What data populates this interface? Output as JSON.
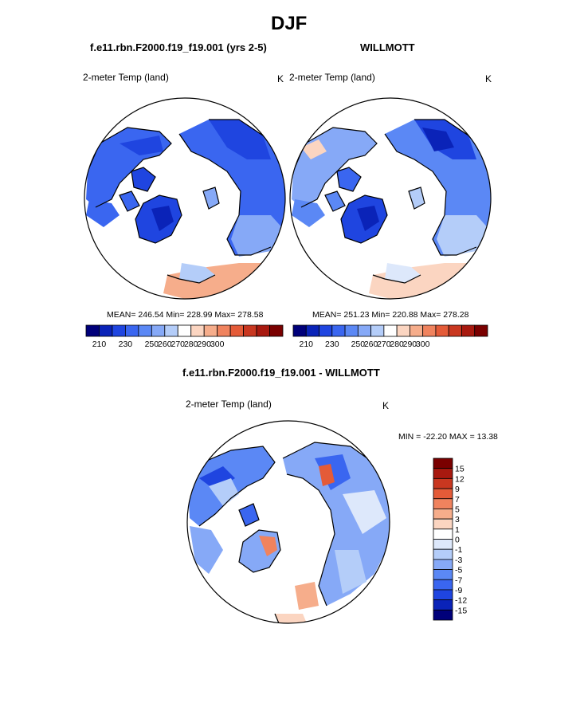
{
  "figure": {
    "title": "DJF",
    "left_title": "f.e11.rbn.F2000.f19_f19.001 (yrs 2-5)",
    "right_title": "WILLMOTT",
    "diff_title": "f.e11.rbn.F2000.f19_f19.001 - WILLMOTT"
  },
  "chart_data": [
    {
      "type": "heatmap",
      "projection": "north-polar-stereographic",
      "title": "f.e11.rbn.F2000.f19_f19.001 (yrs 2-5)",
      "variable": "2-meter Temp (land)",
      "units": "K",
      "stats": "MEAN= 246.54  Min= 228.99  Max= 278.58",
      "mean": 246.54,
      "min": 228.99,
      "max": 278.58,
      "colorbar": {
        "ticks": [
          "210",
          "230",
          "250",
          "260",
          "270",
          "280",
          "290",
          "300"
        ],
        "colors": [
          "#00007a",
          "#0a23b8",
          "#1f45e0",
          "#3a66f0",
          "#5b88f5",
          "#86a9f7",
          "#b4cdf9",
          "#ffffff",
          "#fbd5c1",
          "#f6ad8b",
          "#f0835e",
          "#e45b38",
          "#c93720",
          "#a8190f",
          "#7a0000"
        ]
      }
    },
    {
      "type": "heatmap",
      "projection": "north-polar-stereographic",
      "title": "WILLMOTT",
      "variable": "2-meter Temp (land)",
      "units": "K",
      "stats": "MEAN= 251.23  Min= 220.88  Max= 278.28",
      "mean": 251.23,
      "min": 220.88,
      "max": 278.28,
      "colorbar": {
        "ticks": [
          "210",
          "230",
          "250",
          "260",
          "270",
          "280",
          "290",
          "300"
        ],
        "colors": [
          "#00007a",
          "#0a23b8",
          "#1f45e0",
          "#3a66f0",
          "#5b88f5",
          "#86a9f7",
          "#b4cdf9",
          "#ffffff",
          "#fbd5c1",
          "#f6ad8b",
          "#f0835e",
          "#e45b38",
          "#c93720",
          "#a8190f",
          "#7a0000"
        ]
      }
    },
    {
      "type": "heatmap",
      "projection": "north-polar-stereographic",
      "title": "f.e11.rbn.F2000.f19_f19.001 - WILLMOTT",
      "variable": "2-meter Temp (land)",
      "units": "K",
      "stats": "MIN = -22.20 MAX =  13.38",
      "min": -22.2,
      "max": 13.38,
      "colorbar": {
        "ticks": [
          "15",
          "12",
          "9",
          "7",
          "5",
          "3",
          "1",
          "0",
          "-1",
          "-3",
          "-5",
          "-7",
          "-9",
          "-12",
          "-15"
        ],
        "colors": [
          "#7a0000",
          "#a8190f",
          "#c93720",
          "#e45b38",
          "#f0835e",
          "#f6ad8b",
          "#fbd5c1",
          "#ffffff",
          "#dde8fb",
          "#b4cdf9",
          "#86a9f7",
          "#5b88f5",
          "#3a66f0",
          "#1f45e0",
          "#0a23b8",
          "#00007a"
        ]
      }
    }
  ]
}
